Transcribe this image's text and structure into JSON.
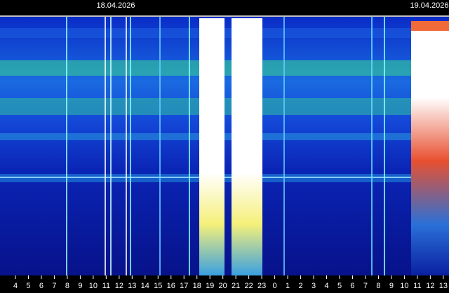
{
  "chart_data": {
    "type": "spectrogram",
    "annotations": [
      "18.04.2026",
      "19.04.2026"
    ],
    "categories": [
      "4",
      "5",
      "6",
      "7",
      "8",
      "9",
      "10",
      "11",
      "12",
      "13",
      "14",
      "15",
      "16",
      "17",
      "18",
      "19",
      "20",
      "21",
      "22",
      "23",
      "0",
      "1",
      "2",
      "3",
      "4",
      "5",
      "6",
      "7",
      "8",
      "9",
      "10",
      "11",
      "12",
      "13"
    ]
  }
}
